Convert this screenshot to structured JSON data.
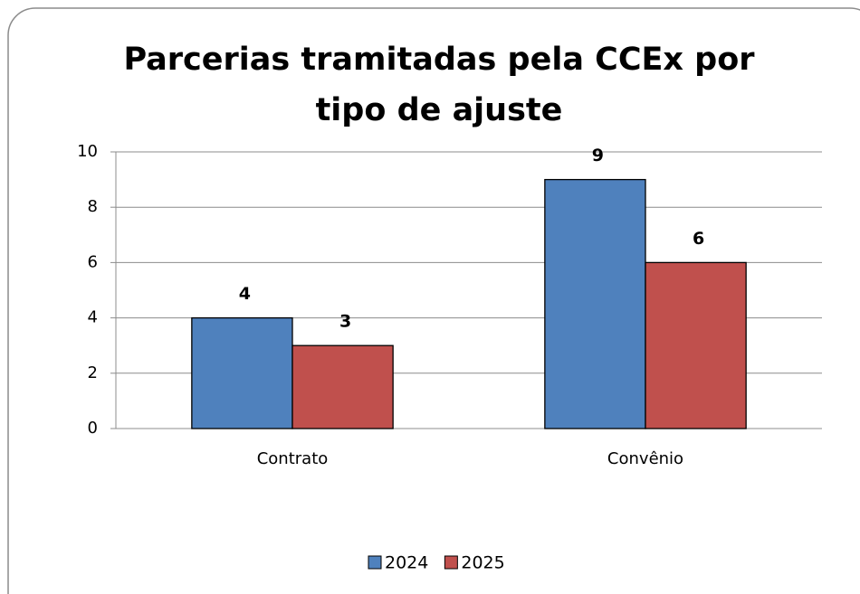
{
  "chart_data": {
    "type": "bar",
    "title": "Parcerias tramitadas pela CCEx por tipo de ajuste",
    "categories": [
      "Contrato",
      "Convênio"
    ],
    "series": [
      {
        "name": "2024",
        "color": "#4f81bd",
        "values": [
          4,
          9
        ]
      },
      {
        "name": "2025",
        "color": "#c0504d",
        "values": [
          3,
          6
        ]
      }
    ],
    "ylim": [
      0,
      10
    ],
    "yticks": [
      0,
      2,
      4,
      6,
      8,
      10
    ],
    "grid": true,
    "legend": "bottom"
  }
}
